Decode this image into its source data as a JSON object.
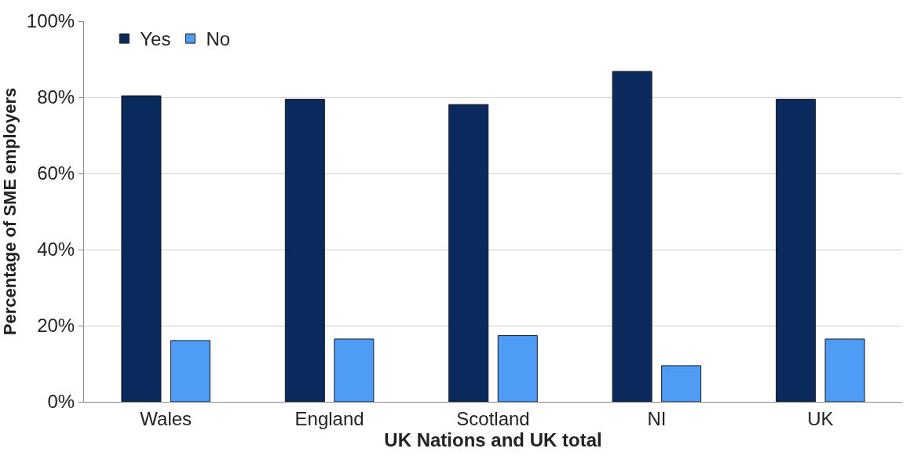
{
  "chart_data": {
    "type": "bar",
    "xlabel": "UK Nations and UK total",
    "ylabel": "Percentage of SME employers",
    "categories": [
      "Wales",
      "England",
      "Scotland",
      "NI",
      "UK"
    ],
    "series": [
      {
        "name": "Yes",
        "color": "#0a2a5e",
        "values": [
          80.4,
          79.5,
          78.1,
          86.8,
          79.5
        ]
      },
      {
        "name": "No",
        "color": "#4f9cf7",
        "values": [
          16.1,
          16.5,
          17.4,
          9.5,
          16.5
        ]
      }
    ],
    "ylim": [
      0,
      100
    ],
    "yticks": [
      {
        "value": 0,
        "label": "0%"
      },
      {
        "value": 20,
        "label": "20%"
      },
      {
        "value": 40,
        "label": "40%"
      },
      {
        "value": 60,
        "label": "60%"
      },
      {
        "value": 80,
        "label": "80%"
      },
      {
        "value": 100,
        "label": "100%"
      }
    ],
    "grid": "y",
    "legend": "top left"
  }
}
